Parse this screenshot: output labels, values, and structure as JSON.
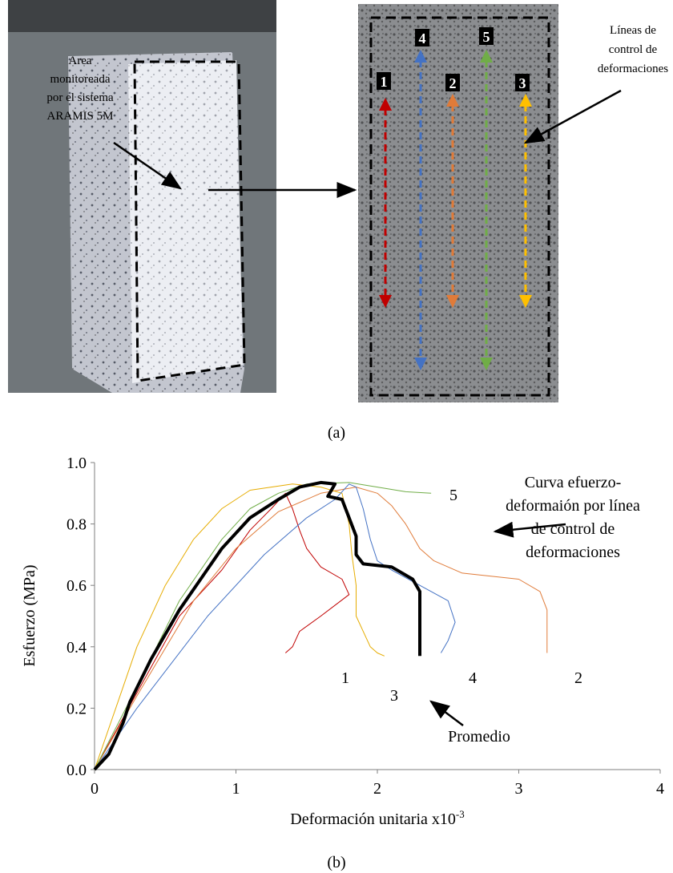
{
  "panel_a": {
    "annotation_left": [
      "Area",
      "monitoreada",
      "por el sistema",
      "ARAMIS 5M"
    ],
    "annotation_right": [
      "Líneas de",
      "control de",
      "deformaciones"
    ],
    "line_labels": [
      "1",
      "4",
      "2",
      "5",
      "3"
    ],
    "caption": "(a)"
  },
  "chart_data": {
    "type": "line",
    "xlabel": "Deformación unitaria x10",
    "xlabel_exponent": "-3",
    "ylabel": "Esfuerzo (MPa)",
    "annotation": [
      "Curva efuerzo-",
      "deformaión por línea",
      "de control de",
      "deformaciones"
    ],
    "xlim": [
      0,
      4
    ],
    "xticks": [
      0,
      1,
      2,
      3,
      4
    ],
    "ylim": [
      0,
      1
    ],
    "yticks": [
      {
        "value": 0,
        "label": "0.0"
      },
      0.2,
      0.4,
      0.6,
      0.8,
      {
        "value": 1,
        "label": "1.0"
      }
    ],
    "grid": false,
    "series": [
      {
        "name": "1",
        "color": "#c00000",
        "width": 1,
        "x": [
          0,
          0.3,
          0.6,
          0.9,
          1.1,
          1.25,
          1.35,
          1.4,
          1.45,
          1.5,
          1.6,
          1.75,
          1.8,
          1.6,
          1.45,
          1.4,
          1.35
        ],
        "values": [
          0,
          0.25,
          0.5,
          0.65,
          0.78,
          0.85,
          0.9,
          0.85,
          0.78,
          0.72,
          0.66,
          0.62,
          0.57,
          0.5,
          0.45,
          0.4,
          0.38
        ]
      },
      {
        "name": "2",
        "color": "#e07b39",
        "width": 1,
        "x": [
          0,
          0.3,
          0.7,
          1.0,
          1.3,
          1.6,
          1.85,
          2.0,
          2.1,
          2.2,
          2.3,
          2.4,
          2.6,
          3.0,
          3.15,
          3.2,
          3.2,
          3.2
        ],
        "values": [
          0,
          0.24,
          0.55,
          0.72,
          0.84,
          0.9,
          0.92,
          0.9,
          0.86,
          0.8,
          0.72,
          0.68,
          0.64,
          0.62,
          0.58,
          0.52,
          0.45,
          0.38
        ]
      },
      {
        "name": "3",
        "color": "#e6ac00",
        "width": 1,
        "x": [
          0,
          0.15,
          0.3,
          0.5,
          0.7,
          0.9,
          1.1,
          1.4,
          1.6,
          1.75,
          1.8,
          1.82,
          1.85,
          1.85,
          1.9,
          1.95,
          2.0,
          2.05
        ],
        "values": [
          0,
          0.2,
          0.4,
          0.6,
          0.75,
          0.85,
          0.91,
          0.93,
          0.92,
          0.9,
          0.8,
          0.7,
          0.6,
          0.5,
          0.45,
          0.4,
          0.38,
          0.37
        ]
      },
      {
        "name": "4",
        "color": "#4472c4",
        "width": 1,
        "x": [
          0,
          0.3,
          0.8,
          1.2,
          1.5,
          1.7,
          1.8,
          1.85,
          1.9,
          1.95,
          2.0,
          2.1,
          2.3,
          2.5,
          2.55,
          2.5,
          2.45
        ],
        "values": [
          0,
          0.2,
          0.5,
          0.7,
          0.82,
          0.88,
          0.93,
          0.92,
          0.85,
          0.75,
          0.68,
          0.65,
          0.6,
          0.55,
          0.48,
          0.42,
          0.38
        ]
      },
      {
        "name": "5",
        "color": "#70ad47",
        "width": 1,
        "x": [
          0,
          0.3,
          0.6,
          0.9,
          1.1,
          1.3,
          1.5,
          1.8,
          2.0,
          2.2,
          2.38
        ],
        "values": [
          0,
          0.27,
          0.55,
          0.75,
          0.85,
          0.9,
          0.93,
          0.935,
          0.92,
          0.905,
          0.9
        ]
      },
      {
        "name": "Promedio",
        "color": "#000000",
        "width": 4,
        "x": [
          0,
          0.1,
          0.2,
          0.25,
          0.4,
          0.6,
          0.75,
          0.9,
          1.1,
          1.3,
          1.45,
          1.6,
          1.7,
          1.65,
          1.75,
          1.8,
          1.85,
          1.85,
          1.9,
          2.1,
          2.25,
          2.3,
          2.3,
          2.3,
          2.3
        ],
        "values": [
          0,
          0.05,
          0.15,
          0.22,
          0.36,
          0.52,
          0.62,
          0.72,
          0.82,
          0.88,
          0.92,
          0.935,
          0.93,
          0.89,
          0.88,
          0.82,
          0.76,
          0.7,
          0.67,
          0.66,
          0.62,
          0.58,
          0.5,
          0.42,
          0.37
        ]
      }
    ]
  },
  "caption_b": "(b)"
}
